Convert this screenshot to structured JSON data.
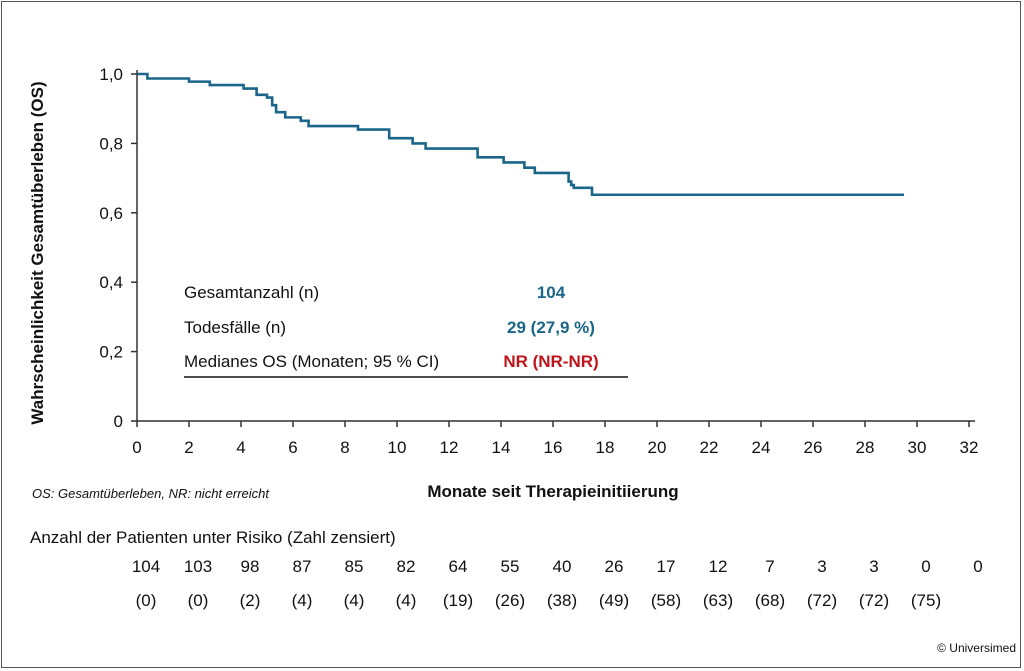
{
  "chart_data": {
    "type": "line",
    "title": "",
    "xlabel": "Monate seit Therapieinitiierung",
    "ylabel": "Wahrscheinlichkeit Gesamtüberleben (OS)",
    "xlim": [
      0,
      32
    ],
    "ylim": [
      0,
      1
    ],
    "x_ticks": [
      "0",
      "2",
      "4",
      "6",
      "8",
      "10",
      "12",
      "14",
      "16",
      "18",
      "20",
      "22",
      "24",
      "26",
      "28",
      "30",
      "32"
    ],
    "y_ticks": [
      "0",
      "0,2",
      "0,4",
      "0,6",
      "0,8",
      "1,0"
    ],
    "grid": false,
    "series": [
      {
        "color": "#1b6688",
        "step": true,
        "x": [
          0,
          0.4,
          2.0,
          2.8,
          4.1,
          4.6,
          5.0,
          5.2,
          5.35,
          5.7,
          6.3,
          6.6,
          8.5,
          9.7,
          10.6,
          11.1,
          13.1,
          14.1,
          14.9,
          15.3,
          16.6,
          16.7,
          16.8,
          17.5,
          29.5
        ],
        "y": [
          1.0,
          0.987,
          0.978,
          0.968,
          0.958,
          0.94,
          0.932,
          0.91,
          0.89,
          0.875,
          0.865,
          0.85,
          0.84,
          0.815,
          0.8,
          0.785,
          0.76,
          0.745,
          0.73,
          0.715,
          0.69,
          0.68,
          0.672,
          0.652,
          0.652
        ]
      }
    ],
    "stats": [
      {
        "label": "Gesamtanzahl (n)",
        "value": "104",
        "color": "#1b6688"
      },
      {
        "label": "Todesfälle (n)",
        "value": "29 (27,9 %)",
        "color": "#1b6688"
      },
      {
        "label": "Medianes OS (Monaten; 95 % CI)",
        "value": "NR (NR-NR)",
        "color": "#c0141c"
      }
    ]
  },
  "footnote": "OS: Gesamtüberleben, NR: nicht erreicht",
  "at_risk": {
    "title": "Anzahl der Patienten unter Risiko (Zahl zensiert)",
    "months": [
      0,
      2,
      4,
      6,
      8,
      10,
      12,
      14,
      16,
      18,
      20,
      22,
      24,
      26,
      28,
      30,
      32
    ],
    "counts": [
      "104",
      "103",
      "98",
      "87",
      "85",
      "82",
      "64",
      "55",
      "40",
      "26",
      "17",
      "12",
      "7",
      "3",
      "3",
      "0",
      "0"
    ],
    "censored": [
      "(0)",
      "(0)",
      "(2)",
      "(4)",
      "(4)",
      "(4)",
      "(19)",
      "(26)",
      "(38)",
      "(49)",
      "(58)",
      "(63)",
      "(68)",
      "(72)",
      "(72)",
      "(75)",
      ""
    ]
  },
  "copyright": "© Universimed"
}
